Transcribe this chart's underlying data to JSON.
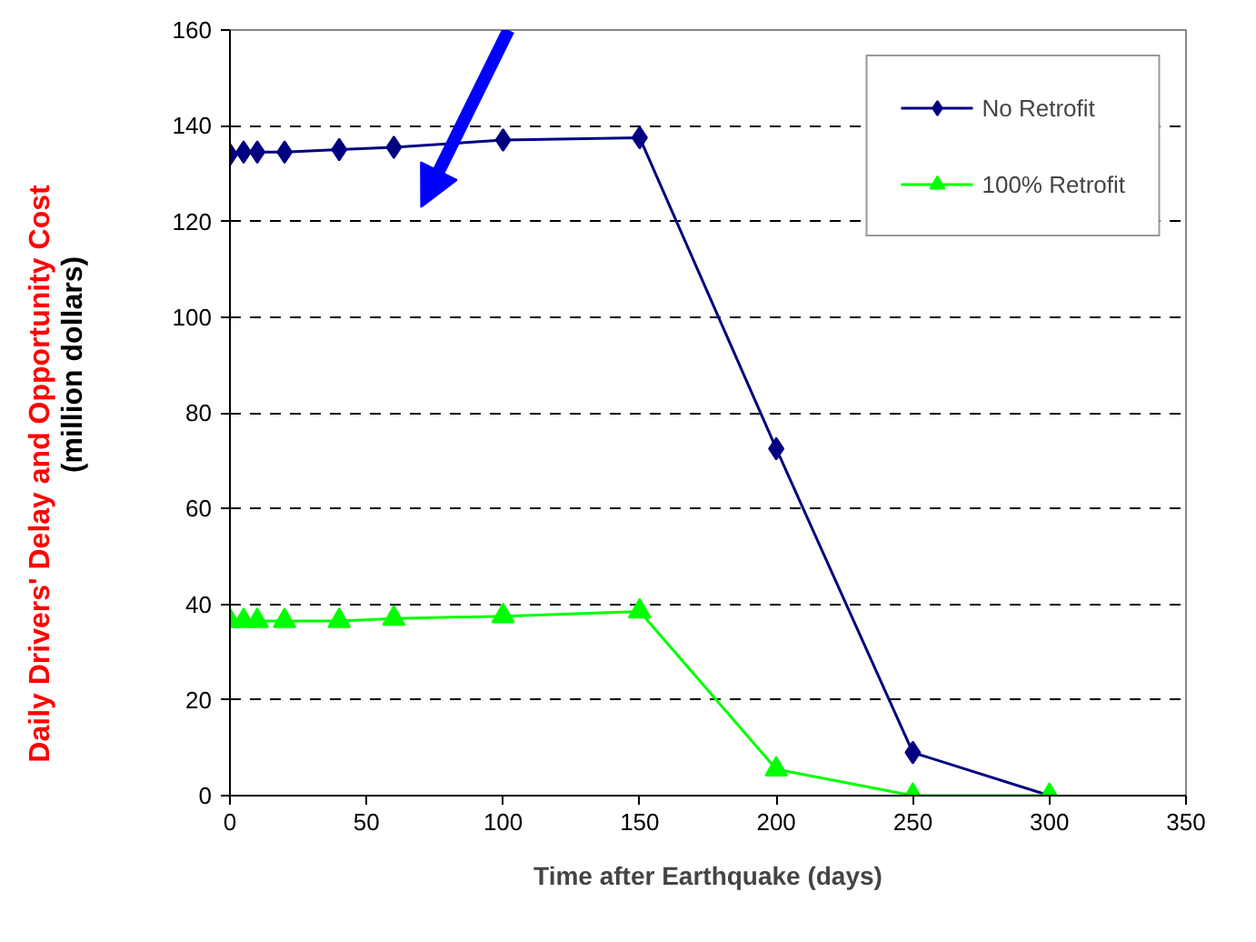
{
  "chart_data": {
    "type": "line",
    "xlabel": "Time after Earthquake (days)",
    "ylabel": "Daily Drivers' Delay and Opportunity Cost\n(million dollars)",
    "x": [
      0,
      5,
      10,
      20,
      40,
      60,
      100,
      150,
      200,
      250,
      300
    ],
    "series": [
      {
        "name": "No Retrofit",
        "color": "#000080",
        "marker": "diamond",
        "values": [
          134,
          134.5,
          134.5,
          134.5,
          135,
          135.5,
          137,
          137.5,
          72.5,
          9,
          0
        ]
      },
      {
        "name": "100% Retrofit",
        "color": "#00ff00",
        "marker": "triangle",
        "values": [
          36.5,
          36.5,
          36.5,
          36.5,
          36.5,
          37,
          37.5,
          38.5,
          5.5,
          0,
          0
        ]
      }
    ],
    "xlim": [
      0,
      350
    ],
    "ylim": [
      0,
      160
    ],
    "xticks": [
      0,
      50,
      100,
      150,
      200,
      250,
      300,
      350
    ],
    "yticks": [
      0,
      20,
      40,
      60,
      80,
      100,
      120,
      140,
      160
    ],
    "grid": "y",
    "legend": "top right",
    "line_style": "solid"
  }
}
